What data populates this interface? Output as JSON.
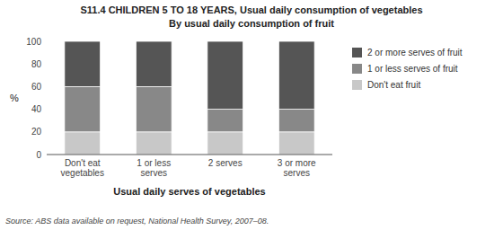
{
  "chart_data": {
    "type": "bar",
    "stacked": true,
    "title": "S11.4   CHILDREN 5 TO 18 YEARS, Usual daily consumption of vegetables",
    "subtitle": "By usual daily consumption of fruit",
    "xlabel": "Usual daily serves of vegetables",
    "ylabel": "%",
    "annotations": [
      "Source: ABS data available on request, National Health Survey, 2007–08."
    ],
    "categories": [
      "Don't eat\nvegetables",
      "1 or less\nserves",
      "2 serves",
      "3 or more\nserves"
    ],
    "series": [
      {
        "name": "Don't eat fruit",
        "color": "#c8c8c8",
        "values": [
          20,
          20,
          20,
          20
        ]
      },
      {
        "name": "1 or less serves of fruit",
        "color": "#888888",
        "values": [
          40,
          40,
          20,
          20
        ]
      },
      {
        "name": "2 or more serves of fruit",
        "color": "#555555",
        "values": [
          40,
          40,
          60,
          60
        ]
      }
    ],
    "ylim": [
      0,
      100
    ],
    "yticks": [
      0,
      20,
      40,
      60,
      80,
      100
    ],
    "grid": false,
    "legend": "right"
  }
}
